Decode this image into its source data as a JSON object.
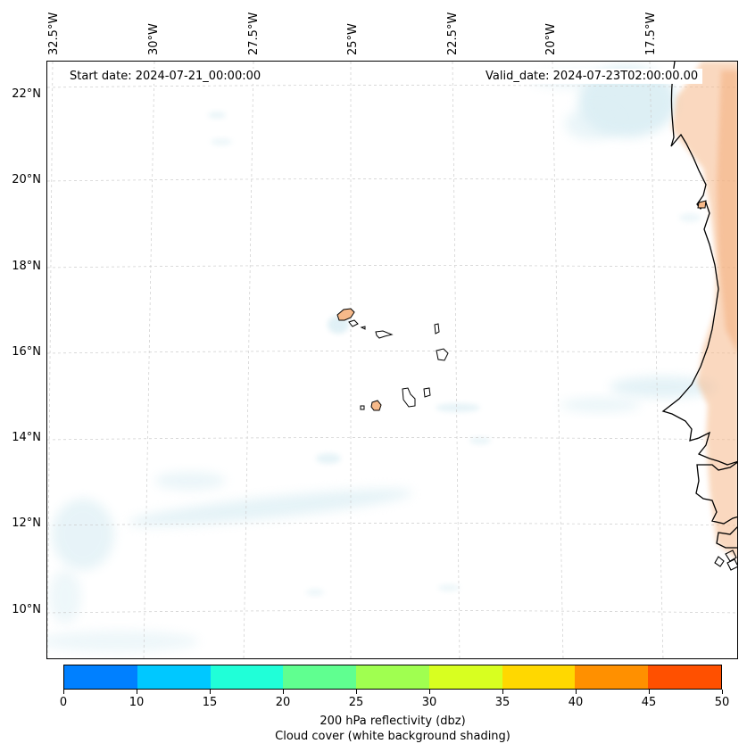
{
  "map": {
    "start_date": "Start date: 2024-07-21_00:00:00",
    "valid_date": "Valid_date: 2024-07-23T02:00:00.00",
    "lon_labels": [
      "32.5°W",
      "30°W",
      "27.5°W",
      "25°W",
      "22.5°W",
      "20°W",
      "17.5°W"
    ],
    "lat_labels": [
      "22°N",
      "20°N",
      "18°N",
      "16°N",
      "14°N",
      "12°N",
      "10°N"
    ],
    "region": "Cabo Verde islands and West African coast (Senegal, Mauritania)",
    "colors": {
      "coastline": "#000000",
      "gridline": "#cccccc",
      "cloud_shading": "#d7ecf3",
      "land_reflectivity": "#f6b98a"
    }
  },
  "colorbar": {
    "ticks": [
      "0",
      "10",
      "15",
      "20",
      "25",
      "30",
      "35",
      "40",
      "45",
      "50"
    ],
    "colors": [
      "#0080ff",
      "#00c8ff",
      "#20ffd8",
      "#60ff90",
      "#a0ff50",
      "#d8ff20",
      "#ffd800",
      "#ff9000",
      "#ff5000"
    ],
    "label_line1": "200 hPa reflectivity (dbz)",
    "label_line2": "Cloud cover (white background shading)"
  }
}
